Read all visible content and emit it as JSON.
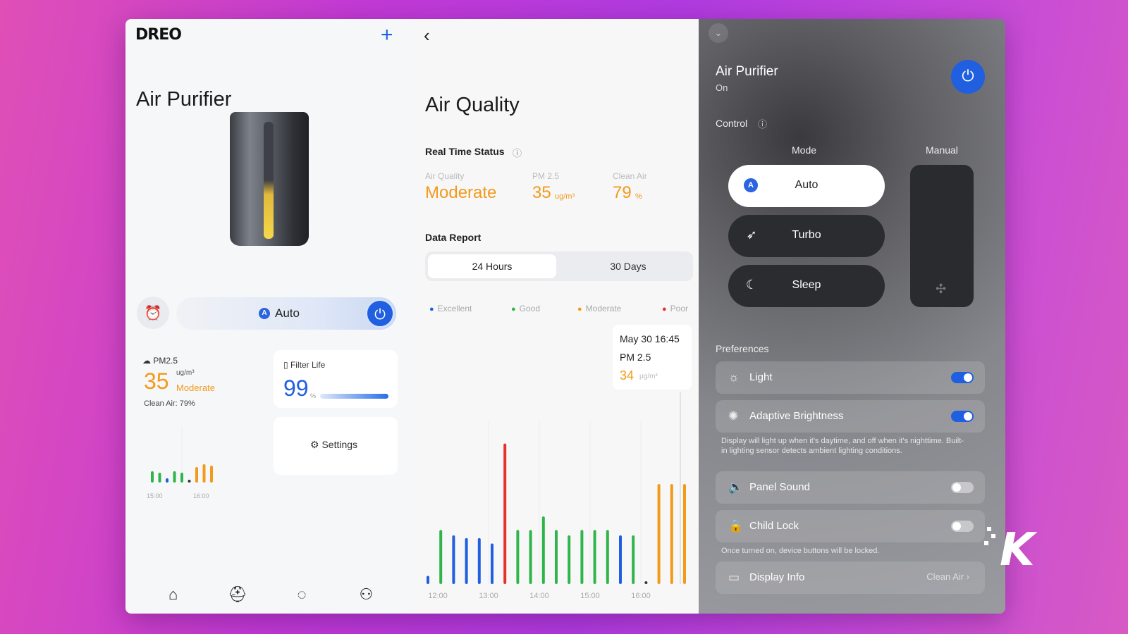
{
  "left": {
    "brand": "DREO",
    "title": "Air Purifier",
    "mode": {
      "badge": "A",
      "label": "Auto"
    },
    "pm_card": {
      "header": "PM2.5",
      "value": "35",
      "unit": "ug/m³",
      "level": "Moderate",
      "clean_air": "Clean Air: 79%",
      "ticks": [
        "15:00",
        "16:00"
      ],
      "bars": [
        {
          "h": 16,
          "c": "#2fb54a"
        },
        {
          "h": 14,
          "c": "#2fb54a"
        },
        {
          "h": 6,
          "c": "#1f5fe0"
        },
        {
          "h": 16,
          "c": "#2fb54a"
        },
        {
          "h": 14,
          "c": "#2fb54a"
        },
        {
          "h": 4,
          "c": "#333333"
        },
        {
          "h": 22,
          "c": "#f29a1a"
        },
        {
          "h": 26,
          "c": "#f29a1a"
        },
        {
          "h": 24,
          "c": "#f29a1a"
        }
      ]
    },
    "filter": {
      "header": "Filter Life",
      "value": "99",
      "unit": "%",
      "level": 0.99
    },
    "settings_label": "Settings"
  },
  "middle": {
    "title": "Air Quality",
    "real_time": "Real Time Status",
    "stats": [
      {
        "label": "Air Quality",
        "value": "Moderate",
        "unit": ""
      },
      {
        "label": "PM 2.5",
        "value": "35",
        "unit": "ug/m³"
      },
      {
        "label": "Clean Air",
        "value": "79",
        "unit": "%"
      }
    ],
    "data_report": "Data Report",
    "tabs": [
      "24 Hours",
      "30 Days"
    ],
    "legend": [
      {
        "name": "Excellent",
        "color": "#1f5fe0"
      },
      {
        "name": "Good",
        "color": "#2fb54a"
      },
      {
        "name": "Moderate",
        "color": "#f29a1a"
      },
      {
        "name": "Poor",
        "color": "#e5322d"
      }
    ],
    "tooltip": {
      "date": "May 30  16:45",
      "metric": "PM 2.5",
      "value": "34",
      "unit": "μg/m³"
    }
  },
  "chart_data": {
    "type": "bar",
    "xlabel": "",
    "ylabel": "",
    "tick_labels": [
      "12:00",
      "13:00",
      "14:00",
      "15:00",
      "16:00"
    ],
    "values": [
      3,
      20,
      18,
      17,
      17,
      15,
      52,
      20,
      20,
      25,
      20,
      18,
      20,
      20,
      20,
      18,
      18,
      1,
      37,
      37,
      37
    ],
    "colors": [
      "#1f5fe0",
      "#2fb54a",
      "#1f5fe0",
      "#1f5fe0",
      "#1f5fe0",
      "#1f5fe0",
      "#e5322d",
      "#2fb54a",
      "#2fb54a",
      "#2fb54a",
      "#2fb54a",
      "#2fb54a",
      "#2fb54a",
      "#2fb54a",
      "#2fb54a",
      "#1f5fe0",
      "#2fb54a",
      "#333333",
      "#f29a1a",
      "#f29a1a",
      "#f29a1a"
    ],
    "ylim": [
      0,
      60
    ]
  },
  "right": {
    "title": "Air Purifier",
    "status": "On",
    "control": "Control",
    "mode_header": "Mode",
    "manual_header": "Manual",
    "modes": [
      {
        "label": "Auto",
        "icon": "A",
        "selected": true
      },
      {
        "label": "Turbo",
        "icon": "rocket-icon",
        "selected": false
      },
      {
        "label": "Sleep",
        "icon": "moon-icon",
        "selected": false
      }
    ],
    "preferences": "Preferences",
    "rows": [
      {
        "label": "Light",
        "on": true
      },
      {
        "label": "Adaptive Brightness",
        "on": true
      },
      {
        "label": "Panel Sound",
        "on": false
      },
      {
        "label": "Child Lock",
        "on": false
      }
    ],
    "brightness_note": "Display will light up when it's daytime, and off when it's nighttime. Built-in lighting sensor detects ambient lighting conditions.",
    "lock_note": "Once turned on, device buttons will be locked.",
    "display_info": {
      "label": "Display Info",
      "value": "Clean Air"
    }
  },
  "watermark": "K"
}
